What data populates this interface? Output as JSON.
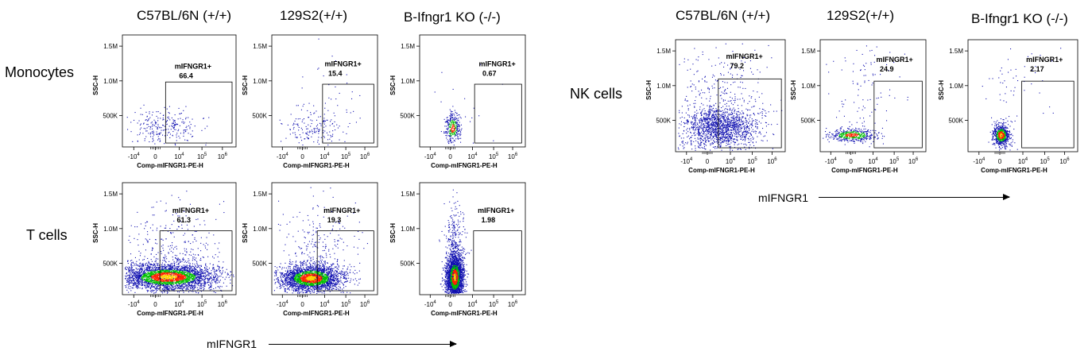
{
  "column_headers": [
    "C57BL/6N (+/+)",
    "129S2(+/+)",
    "B-Ifngr1 KO (-/-)"
  ],
  "row_labels": [
    "Monocytes",
    "T cells",
    "NK cells"
  ],
  "shared_x_label": "mIFNGR1",
  "colors": {
    "low": "#1010b0",
    "mid": "#00c000",
    "high": "#ff2000",
    "peak": "#ffd000"
  },
  "chart_data": [
    {
      "type": "scatter",
      "panel": "Monocytes / C57BL/6N (+/+)",
      "xlabel": "Comp-mIFNGR1-PE-H",
      "ylabel": "SSC-H",
      "y_ticks": [
        "500K",
        "1.0M",
        "1.5M"
      ],
      "x_ticks": [
        "-10^4",
        "0",
        "10^4",
        "10^5",
        "10^6"
      ],
      "gate": {
        "label": "mIFNGR1+",
        "value": "66.4"
      },
      "density": "low"
    },
    {
      "type": "scatter",
      "panel": "Monocytes / 129S2(+/+)",
      "xlabel": "Comp-mIFNGR1-PE-H",
      "ylabel": "SSC-H",
      "y_ticks": [
        "500K",
        "1.0M",
        "1.5M"
      ],
      "x_ticks": [
        "-10^4",
        "0",
        "10^4",
        "10^5",
        "10^6"
      ],
      "gate": {
        "label": "mIFNGR1+",
        "value": "15.4"
      },
      "density": "low"
    },
    {
      "type": "scatter",
      "panel": "Monocytes / B-Ifngr1 KO (-/-)",
      "xlabel": "Comp-mIFNGR1-PE-H",
      "ylabel": "SSC-H",
      "y_ticks": [
        "500K",
        "1.0M",
        "1.5M"
      ],
      "x_ticks": [
        "-10^4",
        "0",
        "10^4",
        "10^5",
        "10^6"
      ],
      "gate": {
        "label": "mIFNGR1+",
        "value": "0.67"
      },
      "density": "low"
    },
    {
      "type": "scatter",
      "panel": "T cells / C57BL/6N (+/+)",
      "xlabel": "Comp-mIFNGR1-PE-H",
      "ylabel": "SSC-H",
      "y_ticks": [
        "500K",
        "1.0M",
        "1.5M"
      ],
      "x_ticks": [
        "-10^4",
        "0",
        "10^4",
        "10^5",
        "10^6"
      ],
      "gate": {
        "label": "mIFNGR1+",
        "value": "61.3"
      },
      "density": "high"
    },
    {
      "type": "scatter",
      "panel": "T cells / 129S2(+/+)",
      "xlabel": "Comp-mIFNGR1-PE-H",
      "ylabel": "SSC-H",
      "y_ticks": [
        "500K",
        "1.0M",
        "1.5M"
      ],
      "x_ticks": [
        "-10^4",
        "0",
        "10^4",
        "10^5",
        "10^6"
      ],
      "gate": {
        "label": "mIFNGR1+",
        "value": "19.3"
      },
      "density": "high"
    },
    {
      "type": "scatter",
      "panel": "T cells / B-Ifngr1 KO (-/-)",
      "xlabel": "Comp-mIFNGR1-PE-H",
      "ylabel": "SSC-H",
      "y_ticks": [
        "500K",
        "1.0M",
        "1.5M"
      ],
      "x_ticks": [
        "-10^4",
        "0",
        "10^4",
        "10^5",
        "10^6"
      ],
      "gate": {
        "label": "mIFNGR1+",
        "value": "1.98"
      },
      "density": "high"
    },
    {
      "type": "scatter",
      "panel": "NK cells / C57BL/6N (+/+)",
      "xlabel": "Comp-mIFNGR1-PE-H",
      "ylabel": "SSC-H",
      "y_ticks": [
        "500K",
        "1.0M",
        "1.5M"
      ],
      "x_ticks": [
        "-10^4",
        "0",
        "10^4",
        "10^5",
        "10^6"
      ],
      "gate": {
        "label": "mIFNGR1+",
        "value": "79.2"
      },
      "density": "medium"
    },
    {
      "type": "scatter",
      "panel": "NK cells / 129S2(+/+)",
      "xlabel": "Comp-mIFNGR1-PE-H",
      "ylabel": "SSC-H",
      "y_ticks": [
        "500K",
        "1.0M",
        "1.5M"
      ],
      "x_ticks": [
        "-10^4",
        "0",
        "10^4",
        "10^5",
        "10^6"
      ],
      "gate": {
        "label": "mIFNGR1+",
        "value": "24.9"
      },
      "density": "low"
    },
    {
      "type": "scatter",
      "panel": "NK cells / B-Ifngr1 KO (-/-)",
      "xlabel": "Comp-mIFNGR1-PE-H",
      "ylabel": "SSC-H",
      "y_ticks": [
        "500K",
        "1.0M",
        "1.5M"
      ],
      "x_ticks": [
        "-10^4",
        "0",
        "10^4",
        "10^5",
        "10^6"
      ],
      "gate": {
        "label": "mIFNGR1+",
        "value": "2.17"
      },
      "density": "low"
    }
  ]
}
